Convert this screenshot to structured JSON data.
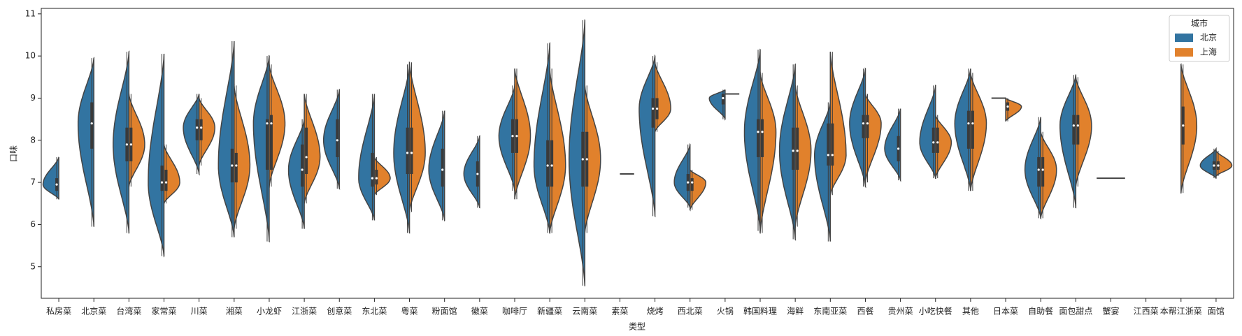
{
  "chart_data": {
    "type": "violin",
    "x_label": "类型",
    "y_label": "口味",
    "legend_title": "城市",
    "legend_position": "upper right",
    "ylim": [
      4.25,
      11.13
    ],
    "yticks": [
      5,
      6,
      7,
      8,
      9,
      10,
      11
    ],
    "categories": [
      "私房菜",
      "北京菜",
      "台湾菜",
      "家常菜",
      "川菜",
      "湘菜",
      "小龙虾",
      "江浙菜",
      "创意菜",
      "东北菜",
      "粤菜",
      "粉面馆",
      "徽菜",
      "咖啡厅",
      "新疆菜",
      "云南菜",
      "素菜",
      "烧烤",
      "西北菜",
      "火锅",
      "韩国料理",
      "海鲜",
      "东南亚菜",
      "西餐",
      "贵州菜",
      "小吃快餐",
      "其他",
      "日本菜",
      "自助餐",
      "面包甜点",
      "蟹宴",
      "江西菜",
      "本帮江浙菜",
      "面馆"
    ],
    "series": [
      {
        "name": "北京",
        "color": "#3274a1",
        "values": [
          {
            "min": 6.6,
            "q1": 6.8,
            "median": 6.95,
            "q3": 7.1,
            "max": 7.6
          },
          {
            "min": 5.95,
            "q1": 7.8,
            "median": 8.4,
            "q3": 8.9,
            "max": 9.95
          },
          {
            "min": 5.8,
            "q1": 7.5,
            "median": 7.9,
            "q3": 8.3,
            "max": 10.1
          },
          {
            "min": 5.25,
            "q1": 6.8,
            "median": 7.0,
            "q3": 7.4,
            "max": 10.05
          },
          {
            "min": 7.2,
            "q1": 8.0,
            "median": 8.3,
            "q3": 8.5,
            "max": 9.1
          },
          {
            "min": 5.7,
            "q1": 7.0,
            "median": 7.4,
            "q3": 7.8,
            "max": 10.35
          },
          {
            "min": 5.6,
            "q1": 7.3,
            "median": 8.4,
            "q3": 8.5,
            "max": 10.0
          },
          {
            "min": 5.9,
            "q1": 6.9,
            "median": 7.3,
            "q3": 7.9,
            "max": 8.5
          },
          {
            "min": 6.85,
            "q1": 7.6,
            "median": 8.0,
            "q3": 8.5,
            "max": 9.2
          },
          {
            "min": 6.1,
            "q1": 6.9,
            "median": 7.1,
            "q3": 7.7,
            "max": 9.1
          },
          {
            "min": 5.8,
            "q1": 7.2,
            "median": 7.7,
            "q3": 8.3,
            "max": 9.8
          },
          {
            "min": 6.1,
            "q1": 6.9,
            "median": 7.3,
            "q3": 7.8,
            "max": 8.7
          },
          {
            "min": 6.4,
            "q1": 6.9,
            "median": 7.2,
            "q3": 7.5,
            "max": 8.1
          },
          {
            "min": 6.8,
            "q1": 7.7,
            "median": 8.1,
            "q3": 8.5,
            "max": 9.3
          },
          {
            "min": 5.8,
            "q1": 6.9,
            "median": 7.4,
            "q3": 8.0,
            "max": 10.3
          },
          {
            "min": 4.55,
            "q1": 6.9,
            "median": 7.55,
            "q3": 8.2,
            "max": 10.85
          },
          null,
          {
            "min": 6.2,
            "q1": 8.3,
            "median": 8.75,
            "q3": 9.0,
            "max": 10.0
          },
          {
            "min": 6.4,
            "q1": 6.8,
            "median": 7.0,
            "q3": 7.2,
            "max": 7.9
          },
          {
            "min": 8.5,
            "q1": 8.85,
            "median": 9.0,
            "q3": 9.1,
            "max": 9.2
          },
          {
            "min": 5.85,
            "q1": 7.6,
            "median": 8.2,
            "q3": 8.5,
            "max": 10.15
          },
          {
            "min": 5.65,
            "q1": 7.3,
            "median": 7.75,
            "q3": 8.3,
            "max": 9.8
          },
          {
            "min": 5.6,
            "q1": 7.4,
            "median": 7.65,
            "q3": 8.4,
            "max": 8.9
          },
          {
            "min": 6.9,
            "q1": 8.05,
            "median": 8.4,
            "q3": 8.6,
            "max": 9.7
          },
          {
            "min": 7.05,
            "q1": 7.5,
            "median": 7.8,
            "q3": 8.1,
            "max": 8.75
          },
          {
            "min": 7.1,
            "q1": 7.7,
            "median": 7.95,
            "q3": 8.3,
            "max": 9.3
          },
          {
            "min": 6.8,
            "q1": 7.8,
            "median": 8.4,
            "q3": 8.7,
            "max": 9.7
          },
          {
            "min": 9.0,
            "q1": 9.0,
            "median": 9.0,
            "q3": 9.0,
            "max": 9.0
          },
          {
            "min": 6.15,
            "q1": 6.9,
            "median": 7.3,
            "q3": 7.6,
            "max": 8.55
          },
          {
            "min": 6.4,
            "q1": 7.9,
            "median": 8.35,
            "q3": 8.6,
            "max": 9.55
          },
          {
            "min": 7.1,
            "q1": 7.1,
            "median": 7.1,
            "q3": 7.1,
            "max": 7.1
          },
          null,
          null,
          {
            "min": 7.1,
            "q1": 7.3,
            "median": 7.4,
            "q3": 7.5,
            "max": 7.8
          }
        ]
      },
      {
        "name": "上海",
        "color": "#e1812c",
        "values": [
          null,
          null,
          {
            "min": 6.9,
            "q1": 7.5,
            "median": 7.9,
            "q3": 8.3,
            "max": 9.1
          },
          {
            "min": 6.5,
            "q1": 6.8,
            "median": 7.0,
            "q3": 7.3,
            "max": 7.9
          },
          {
            "min": 7.4,
            "q1": 8.0,
            "median": 8.3,
            "q3": 8.5,
            "max": 9.0
          },
          {
            "min": 5.9,
            "q1": 7.0,
            "median": 7.4,
            "q3": 7.7,
            "max": 9.3
          },
          {
            "min": 6.9,
            "q1": 7.3,
            "median": 8.4,
            "q3": 8.6,
            "max": 9.8
          },
          {
            "min": 6.5,
            "q1": 7.2,
            "median": 7.6,
            "q3": 8.3,
            "max": 9.1
          },
          null,
          {
            "min": 6.7,
            "q1": 6.95,
            "median": 7.1,
            "q3": 7.3,
            "max": 7.6
          },
          {
            "min": 6.3,
            "q1": 7.2,
            "median": 7.7,
            "q3": 8.3,
            "max": 9.85
          },
          null,
          null,
          {
            "min": 6.6,
            "q1": 7.7,
            "median": 8.1,
            "q3": 8.5,
            "max": 9.7
          },
          {
            "min": 5.8,
            "q1": 6.9,
            "median": 7.4,
            "q3": 8.0,
            "max": 9.7
          },
          {
            "min": 5.8,
            "q1": 6.9,
            "median": 7.55,
            "q3": 8.2,
            "max": 9.3
          },
          {
            "min": 7.2,
            "q1": 7.2,
            "median": 7.2,
            "q3": 7.2,
            "max": 7.2
          },
          {
            "min": 8.2,
            "q1": 8.5,
            "median": 8.75,
            "q3": 9.0,
            "max": 9.85
          },
          {
            "min": 6.35,
            "q1": 6.8,
            "median": 7.0,
            "q3": 7.1,
            "max": 7.3
          },
          {
            "min": 9.1,
            "q1": 9.1,
            "median": 9.1,
            "q3": 9.1,
            "max": 9.1
          },
          {
            "min": 5.8,
            "q1": 7.6,
            "median": 8.2,
            "q3": 8.5,
            "max": 9.6
          },
          {
            "min": 5.95,
            "q1": 7.3,
            "median": 7.75,
            "q3": 8.3,
            "max": 9.3
          },
          {
            "min": 6.7,
            "q1": 7.4,
            "median": 7.65,
            "q3": 8.4,
            "max": 10.1
          },
          {
            "min": 7.0,
            "q1": 8.05,
            "median": 8.4,
            "q3": 8.6,
            "max": 9.1
          },
          null,
          {
            "min": 7.1,
            "q1": 7.7,
            "median": 7.95,
            "q3": 8.3,
            "max": 8.6
          },
          {
            "min": 6.8,
            "q1": 7.8,
            "median": 8.4,
            "q3": 8.7,
            "max": 9.6
          },
          {
            "min": 8.45,
            "q1": 8.7,
            "median": 8.8,
            "q3": 8.9,
            "max": 9.0
          },
          {
            "min": 6.15,
            "q1": 6.9,
            "median": 7.3,
            "q3": 7.6,
            "max": 8.2
          },
          {
            "min": 6.9,
            "q1": 7.9,
            "median": 8.35,
            "q3": 8.6,
            "max": 9.5
          },
          {
            "min": 7.1,
            "q1": 7.1,
            "median": 7.1,
            "q3": 7.1,
            "max": 7.1
          },
          null,
          {
            "min": 6.75,
            "q1": 7.9,
            "median": 8.35,
            "q3": 8.8,
            "max": 9.8
          },
          {
            "min": 7.15,
            "q1": 7.3,
            "median": 7.4,
            "q3": 7.5,
            "max": 7.75
          }
        ]
      }
    ]
  }
}
